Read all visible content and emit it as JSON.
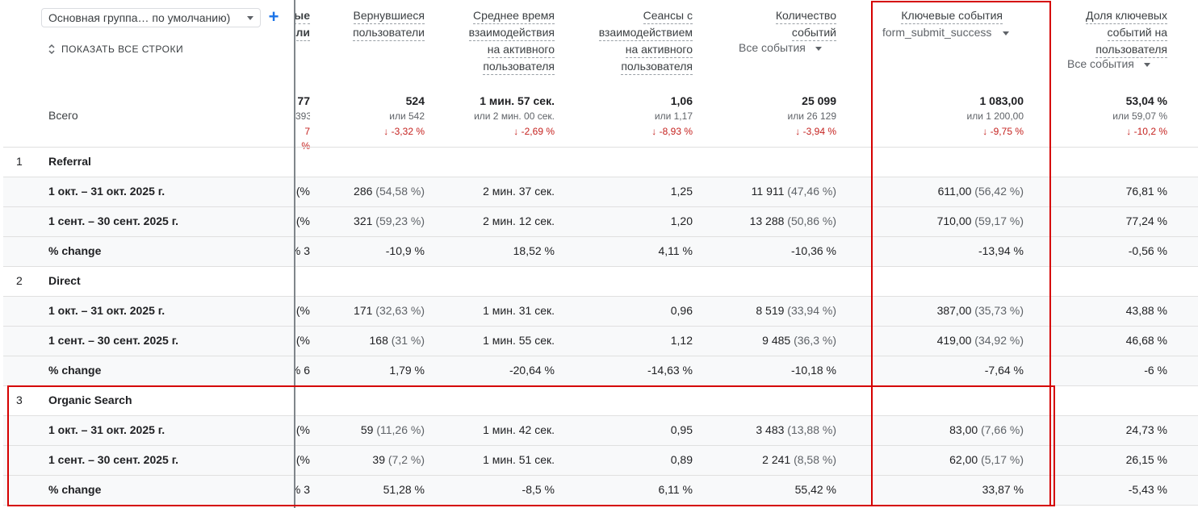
{
  "toolbar": {
    "dimension_select": "Основная группа… по умолчанию)",
    "show_all_rows": "ПОКАЗАТЬ ВСЕ СТРОКИ",
    "add_icon": "plus-icon"
  },
  "columns": {
    "c0": {
      "l1": "ые",
      "l2": "ли"
    },
    "returning": {
      "l1": "Вернувшиеся",
      "l2": "пользователи"
    },
    "avg_time": {
      "l1": "Среднее время",
      "l2": "взаимодействия",
      "l3": "на активного",
      "l4": "пользователя"
    },
    "engaged_sessions": {
      "l1": "Сеансы с",
      "l2": "взаимодействием",
      "l3": "на активного",
      "l4": "пользователя"
    },
    "events": {
      "l1": "Количество",
      "l2": "событий",
      "filter": "Все события"
    },
    "key_events": {
      "l1": "Ключевые события",
      "filter": "form_submit_success"
    },
    "key_rate": {
      "l1": "Доля ключевых",
      "l2": "событий на",
      "l3": "пользователя",
      "filter": "Все события"
    }
  },
  "totals": {
    "label": "Всего",
    "c0": {
      "v": "77",
      "cmp": "393",
      "chg": "7 %"
    },
    "returning": {
      "v": "524",
      "cmp": "или 542",
      "chg": "-3,32 %"
    },
    "avg_time": {
      "v": "1 мин. 57 сек.",
      "cmp": "или 2 мин. 00 сек.",
      "chg": "-2,69 %"
    },
    "engaged_sessions": {
      "v": "1,06",
      "cmp": "или 1,17",
      "chg": "-8,93 %"
    },
    "events": {
      "v": "25 099",
      "cmp": "или 26 129",
      "chg": "-3,94 %"
    },
    "key_events": {
      "v": "1 083,00",
      "cmp": "или 1 200,00",
      "chg": "-9,75 %"
    },
    "key_rate": {
      "v": "53,04 %",
      "cmp": "или 59,07 %",
      "chg": "-10,2 %"
    }
  },
  "rows": [
    {
      "type": "group",
      "num": "1",
      "label": "Referral"
    },
    {
      "type": "data",
      "label": "1 окт. – 31 окт. 2025 г.",
      "c0": "%)",
      "ret": "286",
      "ret_p": "(54,58 %)",
      "time": "2 мин. 37 сек.",
      "sess": "1,25",
      "ev": "11 911",
      "ev_p": "(47,46 %)",
      "ke": "611,00",
      "ke_p": "(56,42 %)",
      "kr": "76,81 %"
    },
    {
      "type": "data",
      "label": "1 сент. – 30 сент. 2025 г.",
      "c0": "%)",
      "ret": "321",
      "ret_p": "(59,23 %)",
      "time": "2 мин. 12 сек.",
      "sess": "1,20",
      "ev": "13 288",
      "ev_p": "(50,86 %)",
      "ke": "710,00",
      "ke_p": "(59,17 %)",
      "kr": "77,24 %"
    },
    {
      "type": "data",
      "label": "% change",
      "c0": "3 %",
      "ret": "-10,9 %",
      "ret_p": "",
      "time": "18,52 %",
      "sess": "4,11 %",
      "ev": "-10,36 %",
      "ev_p": "",
      "ke": "-13,94 %",
      "ke_p": "",
      "kr": "-0,56 %"
    },
    {
      "type": "group",
      "num": "2",
      "label": "Direct"
    },
    {
      "type": "data",
      "label": "1 окт. – 31 окт. 2025 г.",
      "c0": "%)",
      "ret": "171",
      "ret_p": "(32,63 %)",
      "time": "1 мин. 31 сек.",
      "sess": "0,96",
      "ev": "8 519",
      "ev_p": "(33,94 %)",
      "ke": "387,00",
      "ke_p": "(35,73 %)",
      "kr": "43,88 %"
    },
    {
      "type": "data",
      "label": "1 сент. – 30 сент. 2025 г.",
      "c0": "%)",
      "ret": "168",
      "ret_p": "(31 %)",
      "time": "1 мин. 55 сек.",
      "sess": "1,12",
      "ev": "9 485",
      "ev_p": "(36,3 %)",
      "ke": "419,00",
      "ke_p": "(34,92 %)",
      "kr": "46,68 %"
    },
    {
      "type": "data",
      "label": "% change",
      "c0": "6 %",
      "ret": "1,79 %",
      "ret_p": "",
      "time": "-20,64 %",
      "sess": "-14,63 %",
      "ev": "-10,18 %",
      "ev_p": "",
      "ke": "-7,64 %",
      "ke_p": "",
      "kr": "-6 %"
    },
    {
      "type": "group",
      "num": "3",
      "label": "Organic Search"
    },
    {
      "type": "data",
      "label": "1 окт. – 31 окт. 2025 г.",
      "c0": "%)",
      "ret": "59",
      "ret_p": "(11,26 %)",
      "time": "1 мин. 42 сек.",
      "sess": "0,95",
      "ev": "3 483",
      "ev_p": "(13,88 %)",
      "ke": "83,00",
      "ke_p": "(7,66 %)",
      "kr": "24,73 %"
    },
    {
      "type": "data",
      "label": "1 сент. – 30 сент. 2025 г.",
      "c0": "%)",
      "ret": "39",
      "ret_p": "(7,2 %)",
      "time": "1 мин. 51 сек.",
      "sess": "0,89",
      "ev": "2 241",
      "ev_p": "(8,58 %)",
      "ke": "62,00",
      "ke_p": "(5,17 %)",
      "kr": "26,15 %"
    },
    {
      "type": "data",
      "label": "% change",
      "c0": "3 %",
      "ret": "51,28 %",
      "ret_p": "",
      "time": "-8,5 %",
      "sess": "6,11 %",
      "ev": "55,42 %",
      "ev_p": "",
      "ke": "33,87 %",
      "ke_p": "",
      "kr": "-5,43 %"
    }
  ],
  "colors": {
    "accent": "#1a73e8",
    "negative": "#c5221f",
    "highlight_box": "#d50000"
  }
}
